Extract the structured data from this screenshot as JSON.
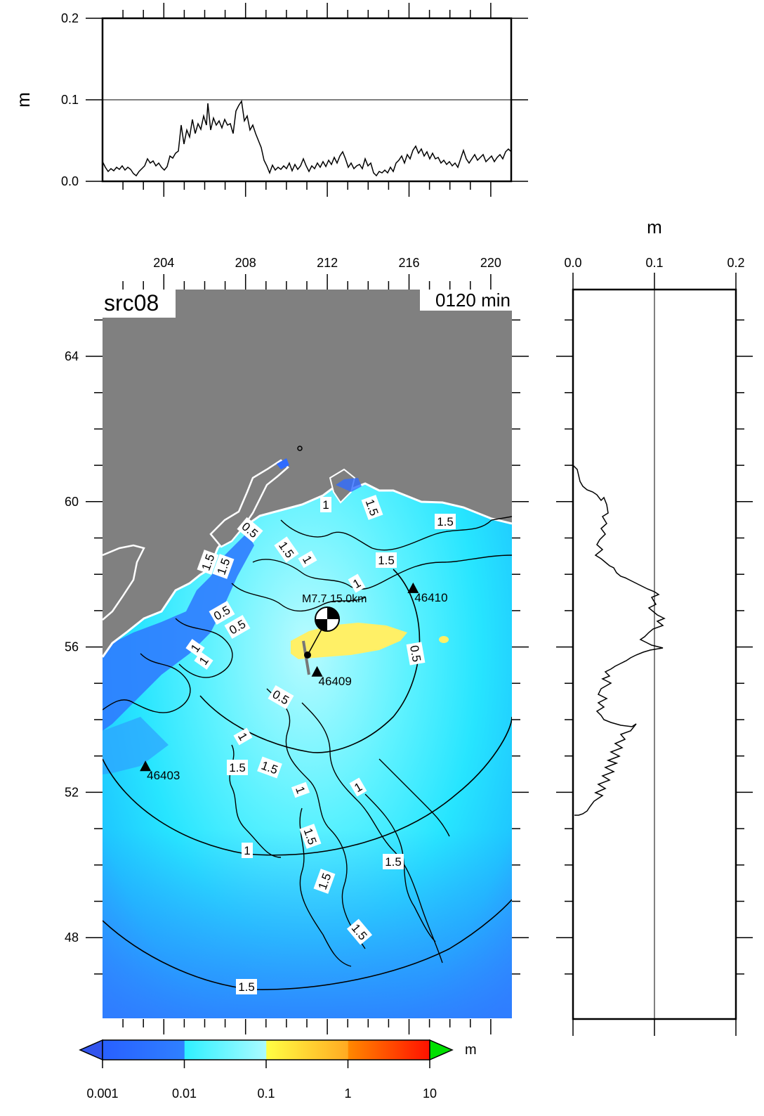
{
  "source_label": "src08",
  "time_label": "0120 min",
  "units": {
    "top_ylabel": "m",
    "right_xlabel": "m",
    "colorbar_unit": "m"
  },
  "top_profile": {
    "y_ticks": [
      "0.0",
      "0.1",
      "0.2"
    ],
    "y_values": [
      0.0,
      0.1,
      0.2
    ],
    "reference_line": 0.1
  },
  "right_profile": {
    "x_ticks": [
      "0.0",
      "0.1",
      "0.2"
    ],
    "x_values": [
      0.0,
      0.1,
      0.2
    ],
    "reference_line": 0.1
  },
  "map": {
    "lon_ticks": [
      "204",
      "208",
      "212",
      "216",
      "220"
    ],
    "lon_values": [
      204,
      208,
      212,
      216,
      220
    ],
    "lat_ticks": [
      "64",
      "60",
      "56",
      "52",
      "48"
    ],
    "lat_values": [
      64,
      60,
      56,
      52,
      48
    ],
    "land_color": "#808080",
    "stations": [
      {
        "id": "46410",
        "lon": 216.2,
        "lat": 57.6
      },
      {
        "id": "46409",
        "lon": 211.5,
        "lat": 55.3
      },
      {
        "id": "46403",
        "lon": 203.1,
        "lat": 52.7
      }
    ],
    "epicenter": {
      "lon": 210.8,
      "lat": 55.8
    },
    "beachball": {
      "lon": 211.8,
      "lat": 56.8
    },
    "source_annotation": "M7.7 15.0km",
    "travel_time_labels": [
      "0.5",
      "1",
      "1.5"
    ],
    "contour_labels": [
      "0.5",
      "1",
      "1.5",
      "1",
      "1.5",
      "1.5",
      "0.5",
      "0.5",
      "1",
      "1",
      "1.5",
      "1.5",
      "1",
      "1",
      "1.5",
      "1.5",
      "1.5",
      "1.5",
      "1.5",
      "1.5",
      "0.5",
      "1",
      "1"
    ]
  },
  "colorbar": {
    "tick_labels": [
      "0.001",
      "0.01",
      "0.1",
      "1",
      "10"
    ],
    "colors": [
      "#2f6bff",
      "#33eeff",
      "#ffff55",
      "#ff9900",
      "#ff2200",
      "#00e000",
      "#3355ee"
    ]
  }
}
